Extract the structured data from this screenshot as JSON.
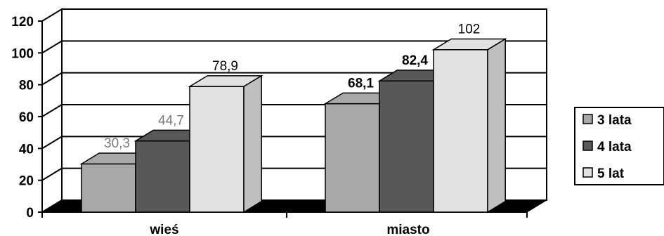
{
  "chart_data": {
    "type": "bar",
    "title": "",
    "xlabel": "",
    "ylabel": "",
    "categories": [
      "wieś",
      "miasto"
    ],
    "series": [
      {
        "name": "3 lata",
        "values": [
          30.3,
          68.1
        ],
        "labels": [
          "30,3",
          "68,1"
        ],
        "color": "#a8a8a8"
      },
      {
        "name": "4 lata",
        "values": [
          44.7,
          82.4
        ],
        "labels": [
          "44,7",
          "82,4"
        ],
        "color": "#585858"
      },
      {
        "name": "5 lat",
        "values": [
          78.9,
          102
        ],
        "labels": [
          "78,9",
          "102"
        ],
        "color": "#e2e2e2"
      }
    ],
    "y_ticks": [
      "0",
      "20",
      "40",
      "60",
      "80",
      "100",
      "120"
    ],
    "ylim": [
      0,
      120
    ],
    "grid": true,
    "legend_position": "right",
    "style": "3d-clustered-column"
  }
}
